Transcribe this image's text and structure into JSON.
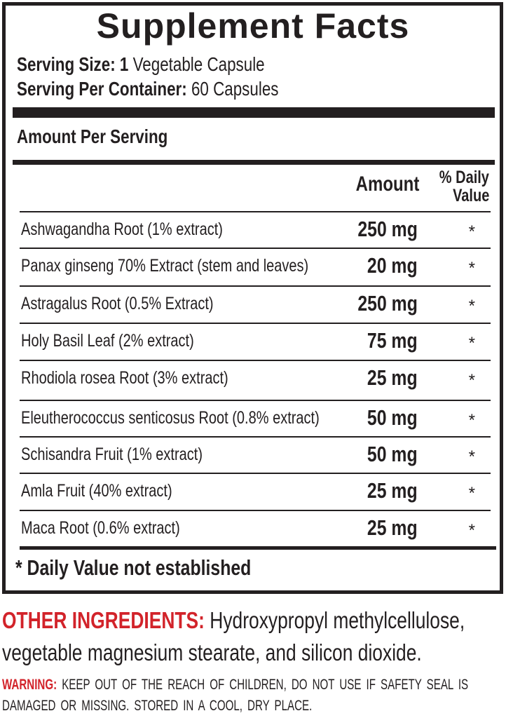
{
  "title": "Supplement Facts",
  "serving_size": {
    "label": "Serving Size: 1",
    "value": "Vegetable Capsule"
  },
  "servings_per_container": {
    "label": "Serving Per Container:",
    "value": "60 Capsules"
  },
  "amount_per_serving": "Amount Per Serving",
  "columns": {
    "amount": "Amount",
    "dv_line1": "% Daily",
    "dv_line2": "Value"
  },
  "ingredients": [
    {
      "name": "Ashwagandha Root (1% extract)",
      "amount": "250 mg",
      "dv": "*"
    },
    {
      "name": "Panax ginseng 70% Extract (stem and leaves)",
      "amount": "20 mg",
      "dv": "*"
    },
    {
      "name": "Astragalus Root (0.5% Extract)",
      "amount": "250 mg",
      "dv": "*"
    },
    {
      "name": "Holy Basil Leaf (2% extract)",
      "amount": "75 mg",
      "dv": "*"
    },
    {
      "name": "Rhodiola rosea Root (3% extract)",
      "amount": "25 mg",
      "dv": "*"
    },
    {
      "name": "Eleutherococcus senticosus Root (0.8% extract)",
      "amount": "50 mg",
      "dv": "*"
    },
    {
      "name": "Schisandra Fruit (1% extract)",
      "amount": "50 mg",
      "dv": "*"
    },
    {
      "name": "Amla Fruit (40% extract)",
      "amount": "25 mg",
      "dv": "*"
    },
    {
      "name": "Maca Root (0.6% extract)",
      "amount": "25 mg",
      "dv": "*"
    }
  ],
  "footnote": "* Daily Value not established",
  "other_ingredients": {
    "label": "OTHER INGREDIENTS:",
    "line1": "Hydroxypropyl methylcellulose,",
    "line2": "vegetable magnesium stearate, and silicon dioxide."
  },
  "warning": {
    "label": "WARNING:",
    "line1": "KEEP OUT OF THE REACH OF CHILDREN, DO NOT USE IF SAFETY SEAL IS",
    "line2": "DAMAGED OR MISSING. STORED IN A COOL, DRY PLACE."
  },
  "colors": {
    "text": "#231f20",
    "accent_red": "#d2232a"
  }
}
